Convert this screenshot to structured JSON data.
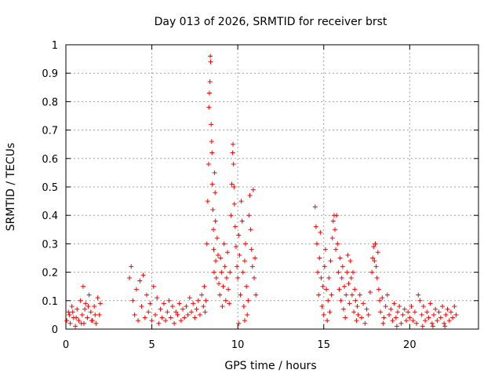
{
  "chart_data": {
    "type": "scatter",
    "title": "Day 013 of 2026, SRMTID for receiver brst",
    "xlabel": "GPS time / hours",
    "ylabel": "SRMTID / TECUs",
    "xlim": [
      0,
      24
    ],
    "ylim": [
      0,
      1
    ],
    "xticks": [
      0,
      5,
      10,
      15,
      20
    ],
    "xtick_labels": [
      "0",
      "5",
      "10",
      "15",
      "20"
    ],
    "yticks": [
      0,
      0.1,
      0.2,
      0.3,
      0.4,
      0.5,
      0.6,
      0.7,
      0.8,
      0.9,
      1
    ],
    "ytick_labels": [
      "0",
      "0.1",
      "0.2",
      "0.3",
      "0.4",
      "0.5",
      "0.6",
      "0.7",
      "0.8",
      "0.9",
      "1"
    ],
    "grid": true,
    "marker": "+",
    "color": "#ff0000",
    "series": [
      {
        "name": "SRMTID",
        "points": [
          [
            0.05,
            0.03
          ],
          [
            0.15,
            0.06
          ],
          [
            0.25,
            0.02
          ],
          [
            0.35,
            0.08
          ],
          [
            0.45,
            0.04
          ],
          [
            0.55,
            0.01
          ],
          [
            0.65,
            0.07
          ],
          [
            0.75,
            0.03
          ],
          [
            0.85,
            0.1
          ],
          [
            0.95,
            0.05
          ],
          [
            1.0,
            0.15
          ],
          [
            1.05,
            0.02
          ],
          [
            1.15,
            0.09
          ],
          [
            1.25,
            0.04
          ],
          [
            1.35,
            0.12
          ],
          [
            1.45,
            0.06
          ],
          [
            1.55,
            0.03
          ],
          [
            1.65,
            0.08
          ],
          [
            1.75,
            0.02
          ],
          [
            1.85,
            0.11
          ],
          [
            1.95,
            0.05
          ],
          [
            2.0,
            0.09
          ],
          [
            0.2,
            0.05
          ],
          [
            0.6,
            0.04
          ],
          [
            1.1,
            0.07
          ],
          [
            1.5,
            0.03
          ],
          [
            0.4,
            0.06
          ],
          [
            0.9,
            0.02
          ],
          [
            1.7,
            0.05
          ],
          [
            1.3,
            0.08
          ],
          [
            3.7,
            0.18
          ],
          [
            3.8,
            0.22
          ],
          [
            3.9,
            0.1
          ],
          [
            4.0,
            0.05
          ],
          [
            4.1,
            0.14
          ],
          [
            4.2,
            0.03
          ],
          [
            4.3,
            0.17
          ],
          [
            4.4,
            0.08
          ],
          [
            4.5,
            0.19
          ],
          [
            4.6,
            0.04
          ],
          [
            4.7,
            0.12
          ],
          [
            4.8,
            0.06
          ],
          [
            4.9,
            0.09
          ],
          [
            5.0,
            0.03
          ],
          [
            5.1,
            0.15
          ],
          [
            5.2,
            0.05
          ],
          [
            5.3,
            0.11
          ],
          [
            5.4,
            0.02
          ],
          [
            5.5,
            0.07
          ],
          [
            5.6,
            0.04
          ],
          [
            5.7,
            0.09
          ],
          [
            5.8,
            0.03
          ],
          [
            5.9,
            0.06
          ],
          [
            6.0,
            0.1
          ],
          [
            6.1,
            0.04
          ],
          [
            6.2,
            0.08
          ],
          [
            6.3,
            0.02
          ],
          [
            6.4,
            0.06
          ],
          [
            6.5,
            0.05
          ],
          [
            6.6,
            0.09
          ],
          [
            6.7,
            0.03
          ],
          [
            6.8,
            0.07
          ],
          [
            6.9,
            0.04
          ],
          [
            7.0,
            0.08
          ],
          [
            7.1,
            0.05
          ],
          [
            7.2,
            0.11
          ],
          [
            7.3,
            0.06
          ],
          [
            7.4,
            0.09
          ],
          [
            7.5,
            0.04
          ],
          [
            7.6,
            0.07
          ],
          [
            7.7,
            0.1
          ],
          [
            7.8,
            0.05
          ],
          [
            7.9,
            0.12
          ],
          [
            8.0,
            0.08
          ],
          [
            8.05,
            0.15
          ],
          [
            8.1,
            0.06
          ],
          [
            8.15,
            0.1
          ],
          [
            8.2,
            0.3
          ],
          [
            8.25,
            0.45
          ],
          [
            8.3,
            0.58
          ],
          [
            8.32,
            0.78
          ],
          [
            8.35,
            0.83
          ],
          [
            8.38,
            0.87
          ],
          [
            8.4,
            0.96
          ],
          [
            8.42,
            0.94
          ],
          [
            8.45,
            0.72
          ],
          [
            8.48,
            0.66
          ],
          [
            8.5,
            0.62
          ],
          [
            8.52,
            0.51
          ],
          [
            8.55,
            0.42
          ],
          [
            8.58,
            0.35
          ],
          [
            8.6,
            0.28
          ],
          [
            8.62,
            0.2
          ],
          [
            8.65,
            0.55
          ],
          [
            8.68,
            0.48
          ],
          [
            8.7,
            0.38
          ],
          [
            8.72,
            0.24
          ],
          [
            8.75,
            0.18
          ],
          [
            8.8,
            0.32
          ],
          [
            8.85,
            0.26
          ],
          [
            8.9,
            0.16
          ],
          [
            8.95,
            0.12
          ],
          [
            9.0,
            0.25
          ],
          [
            9.05,
            0.2
          ],
          [
            9.1,
            0.08
          ],
          [
            9.15,
            0.15
          ],
          [
            9.2,
            0.3
          ],
          [
            9.25,
            0.22
          ],
          [
            9.3,
            0.1
          ],
          [
            9.35,
            0.18
          ],
          [
            9.4,
            0.27
          ],
          [
            9.45,
            0.14
          ],
          [
            9.5,
            0.09
          ],
          [
            9.55,
            0.2
          ],
          [
            9.6,
            0.4
          ],
          [
            9.65,
            0.51
          ],
          [
            9.7,
            0.62
          ],
          [
            9.72,
            0.65
          ],
          [
            9.75,
            0.58
          ],
          [
            9.78,
            0.5
          ],
          [
            9.8,
            0.44
          ],
          [
            9.85,
            0.36
          ],
          [
            9.9,
            0.29
          ],
          [
            9.95,
            0.22
          ],
          [
            10.0,
            0.18
          ],
          [
            10.05,
            0.33
          ],
          [
            10.1,
            0.26
          ],
          [
            10.15,
            0.12
          ],
          [
            10.2,
            0.45
          ],
          [
            10.25,
            0.38
          ],
          [
            10.3,
            0.2
          ],
          [
            10.35,
            0.08
          ],
          [
            10.4,
            0.24
          ],
          [
            10.45,
            0.3
          ],
          [
            10.5,
            0.15
          ],
          [
            10.55,
            0.05
          ],
          [
            10.6,
            0.1
          ],
          [
            10.65,
            0.4
          ],
          [
            10.7,
            0.47
          ],
          [
            10.75,
            0.35
          ],
          [
            10.8,
            0.28
          ],
          [
            10.85,
            0.22
          ],
          [
            10.9,
            0.49
          ],
          [
            10.95,
            0.18
          ],
          [
            11.0,
            0.25
          ],
          [
            11.05,
            0.12
          ],
          [
            10.05,
            0.02
          ],
          [
            10.4,
            0.03
          ],
          [
            14.5,
            0.43
          ],
          [
            14.55,
            0.36
          ],
          [
            14.6,
            0.3
          ],
          [
            14.65,
            0.2
          ],
          [
            14.7,
            0.12
          ],
          [
            14.75,
            0.25
          ],
          [
            14.8,
            0.34
          ],
          [
            14.85,
            0.18
          ],
          [
            14.9,
            0.08
          ],
          [
            14.95,
            0.15
          ],
          [
            15.0,
            0.05
          ],
          [
            15.05,
            0.22
          ],
          [
            15.1,
            0.28
          ],
          [
            15.15,
            0.14
          ],
          [
            15.2,
            0.03
          ],
          [
            15.25,
            0.1
          ],
          [
            15.3,
            0.18
          ],
          [
            15.35,
            0.06
          ],
          [
            15.4,
            0.24
          ],
          [
            15.45,
            0.12
          ],
          [
            15.5,
            0.32
          ],
          [
            15.55,
            0.38
          ],
          [
            15.6,
            0.4
          ],
          [
            15.65,
            0.35
          ],
          [
            15.7,
            0.28
          ],
          [
            15.75,
            0.4
          ],
          [
            15.8,
            0.3
          ],
          [
            15.85,
            0.2
          ],
          [
            15.9,
            0.14
          ],
          [
            15.95,
            0.25
          ],
          [
            16.0,
            0.1
          ],
          [
            16.05,
            0.18
          ],
          [
            16.1,
            0.22
          ],
          [
            16.15,
            0.07
          ],
          [
            16.2,
            0.15
          ],
          [
            16.25,
            0.04
          ],
          [
            16.3,
            0.12
          ],
          [
            16.35,
            0.2
          ],
          [
            16.4,
            0.26
          ],
          [
            16.45,
            0.16
          ],
          [
            16.5,
            0.09
          ],
          [
            16.55,
            0.24
          ],
          [
            16.6,
            0.18
          ],
          [
            16.65,
            0.12
          ],
          [
            16.7,
            0.2
          ],
          [
            16.75,
            0.06
          ],
          [
            16.8,
            0.14
          ],
          [
            16.85,
            0.1
          ],
          [
            16.9,
            0.03
          ],
          [
            16.95,
            0.08
          ],
          [
            17.0,
            0.05
          ],
          [
            17.1,
            0.12
          ],
          [
            17.2,
            0.04
          ],
          [
            17.3,
            0.09
          ],
          [
            17.4,
            0.02
          ],
          [
            17.5,
            0.07
          ],
          [
            17.6,
            0.05
          ],
          [
            17.7,
            0.13
          ],
          [
            17.8,
            0.2
          ],
          [
            17.85,
            0.25
          ],
          [
            17.9,
            0.29
          ],
          [
            17.95,
            0.24
          ],
          [
            18.0,
            0.3
          ],
          [
            18.05,
            0.22
          ],
          [
            18.1,
            0.18
          ],
          [
            18.15,
            0.27
          ],
          [
            18.2,
            0.14
          ],
          [
            18.25,
            0.1
          ],
          [
            18.3,
            0.06
          ],
          [
            18.4,
            0.11
          ],
          [
            18.5,
            0.04
          ],
          [
            18.6,
            0.08
          ],
          [
            18.7,
            0.12
          ],
          [
            18.8,
            0.05
          ],
          [
            18.9,
            0.07
          ],
          [
            19.0,
            0.03
          ],
          [
            19.1,
            0.09
          ],
          [
            19.2,
            0.04
          ],
          [
            19.3,
            0.06
          ],
          [
            19.4,
            0.08
          ],
          [
            19.5,
            0.02
          ],
          [
            19.6,
            0.05
          ],
          [
            19.7,
            0.07
          ],
          [
            19.8,
            0.03
          ],
          [
            19.9,
            0.06
          ],
          [
            20.0,
            0.04
          ],
          [
            20.1,
            0.08
          ],
          [
            20.2,
            0.03
          ],
          [
            20.3,
            0.06
          ],
          [
            20.4,
            0.02
          ],
          [
            20.5,
            0.12
          ],
          [
            20.6,
            0.1
          ],
          [
            20.7,
            0.05
          ],
          [
            20.8,
            0.08
          ],
          [
            20.9,
            0.03
          ],
          [
            21.0,
            0.06
          ],
          [
            21.1,
            0.04
          ],
          [
            21.2,
            0.09
          ],
          [
            21.3,
            0.02
          ],
          [
            21.4,
            0.05
          ],
          [
            21.5,
            0.07
          ],
          [
            21.6,
            0.03
          ],
          [
            21.7,
            0.06
          ],
          [
            21.8,
            0.04
          ],
          [
            21.9,
            0.08
          ],
          [
            22.0,
            0.02
          ],
          [
            22.1,
            0.05
          ],
          [
            22.2,
            0.07
          ],
          [
            22.3,
            0.03
          ],
          [
            22.4,
            0.06
          ],
          [
            22.5,
            0.04
          ],
          [
            22.6,
            0.08
          ],
          [
            22.7,
            0.05
          ],
          [
            19.25,
            0.01
          ],
          [
            20.75,
            0.01
          ],
          [
            21.35,
            0.01
          ],
          [
            22.05,
            0.01
          ],
          [
            18.45,
            0.02
          ]
        ]
      }
    ]
  }
}
